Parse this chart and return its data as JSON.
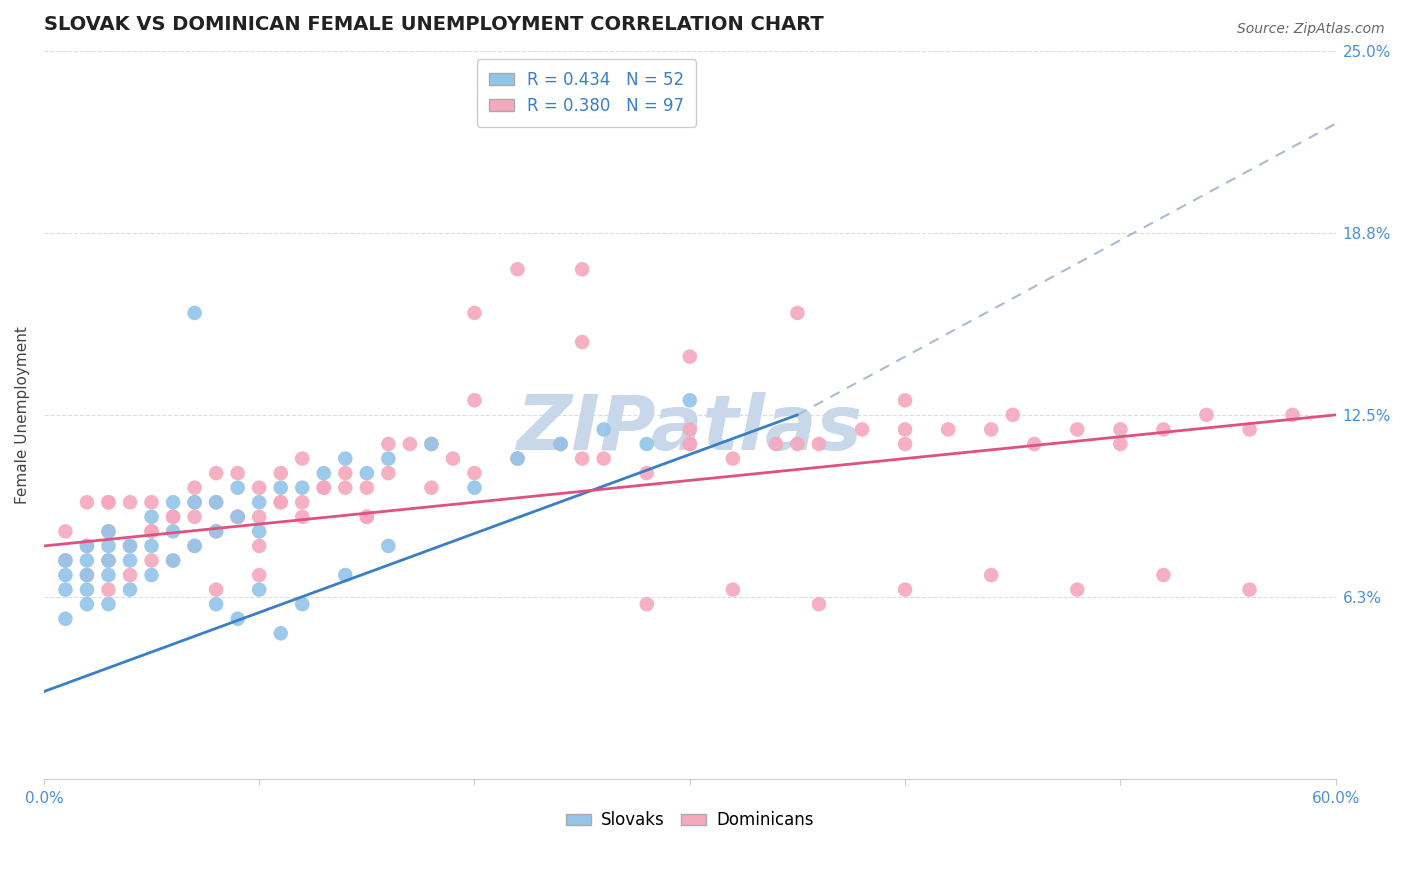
{
  "title": "SLOVAK VS DOMINICAN FEMALE UNEMPLOYMENT CORRELATION CHART",
  "source": "Source: ZipAtlas.com",
  "ylabel": "Female Unemployment",
  "xlim": [
    0.0,
    0.6
  ],
  "ylim": [
    0.0,
    0.25
  ],
  "yticks": [
    0.0,
    0.0625,
    0.125,
    0.1875,
    0.25
  ],
  "ytick_labels": [
    "",
    "6.3%",
    "12.5%",
    "18.8%",
    "25.0%"
  ],
  "xticks": [
    0.0,
    0.1,
    0.2,
    0.3,
    0.4,
    0.5,
    0.6
  ],
  "xtick_labels": [
    "0.0%",
    "",
    "",
    "",
    "",
    "",
    "60.0%"
  ],
  "slovak_R": 0.434,
  "slovak_N": 52,
  "dominican_R": 0.38,
  "dominican_N": 97,
  "slovak_color": "#92C5E8",
  "dominican_color": "#F5A8BE",
  "slovak_line_color": "#3A7EC6",
  "dominican_line_color": "#E05080",
  "dashed_color": "#AABBD0",
  "watermark_color": "#C8D8EA",
  "background_color": "#FFFFFF",
  "title_fontsize": 14,
  "label_fontsize": 11,
  "tick_fontsize": 11,
  "legend_fontsize": 12,
  "source_fontsize": 10,
  "slovak_trend": [
    0.0,
    0.35
  ],
  "slovak_trend_y": [
    0.03,
    0.125
  ],
  "dominican_trend": [
    0.0,
    0.6
  ],
  "dominican_trend_y": [
    0.08,
    0.125
  ],
  "dashed_trend": [
    0.35,
    0.6
  ],
  "dashed_trend_y": [
    0.125,
    0.225
  ],
  "slovak_scatter_x": [
    0.01,
    0.01,
    0.01,
    0.01,
    0.02,
    0.02,
    0.02,
    0.02,
    0.02,
    0.03,
    0.03,
    0.03,
    0.03,
    0.03,
    0.04,
    0.04,
    0.04,
    0.05,
    0.05,
    0.05,
    0.06,
    0.06,
    0.06,
    0.07,
    0.07,
    0.08,
    0.08,
    0.09,
    0.09,
    0.1,
    0.1,
    0.11,
    0.12,
    0.13,
    0.14,
    0.15,
    0.16,
    0.18,
    0.2,
    0.22,
    0.24,
    0.26,
    0.28,
    0.3,
    0.07,
    0.08,
    0.09,
    0.1,
    0.11,
    0.12,
    0.14,
    0.16
  ],
  "slovak_scatter_y": [
    0.055,
    0.065,
    0.07,
    0.075,
    0.06,
    0.065,
    0.07,
    0.075,
    0.08,
    0.06,
    0.07,
    0.075,
    0.08,
    0.085,
    0.065,
    0.075,
    0.08,
    0.07,
    0.08,
    0.09,
    0.075,
    0.085,
    0.095,
    0.08,
    0.095,
    0.085,
    0.095,
    0.09,
    0.1,
    0.085,
    0.095,
    0.1,
    0.1,
    0.105,
    0.11,
    0.105,
    0.11,
    0.115,
    0.1,
    0.11,
    0.115,
    0.12,
    0.115,
    0.13,
    0.16,
    0.06,
    0.055,
    0.065,
    0.05,
    0.06,
    0.07,
    0.08
  ],
  "dominican_scatter_x": [
    0.01,
    0.01,
    0.02,
    0.02,
    0.02,
    0.03,
    0.03,
    0.03,
    0.03,
    0.04,
    0.04,
    0.04,
    0.05,
    0.05,
    0.05,
    0.06,
    0.06,
    0.07,
    0.07,
    0.07,
    0.08,
    0.08,
    0.08,
    0.09,
    0.09,
    0.1,
    0.1,
    0.11,
    0.11,
    0.12,
    0.12,
    0.13,
    0.14,
    0.15,
    0.16,
    0.17,
    0.18,
    0.19,
    0.2,
    0.22,
    0.24,
    0.26,
    0.28,
    0.3,
    0.32,
    0.34,
    0.36,
    0.38,
    0.4,
    0.42,
    0.44,
    0.46,
    0.48,
    0.5,
    0.52,
    0.54,
    0.56,
    0.58,
    0.3,
    0.35,
    0.4,
    0.45,
    0.5,
    0.25,
    0.3,
    0.35,
    0.4,
    0.2,
    0.25,
    0.3,
    0.1,
    0.15,
    0.2,
    0.25,
    0.12,
    0.14,
    0.16,
    0.18,
    0.05,
    0.07,
    0.09,
    0.11,
    0.13,
    0.15,
    0.28,
    0.32,
    0.36,
    0.4,
    0.44,
    0.48,
    0.52,
    0.56,
    0.03,
    0.06,
    0.08,
    0.1,
    0.22
  ],
  "dominican_scatter_y": [
    0.075,
    0.085,
    0.07,
    0.08,
    0.095,
    0.065,
    0.075,
    0.085,
    0.095,
    0.07,
    0.08,
    0.095,
    0.075,
    0.085,
    0.095,
    0.075,
    0.09,
    0.08,
    0.09,
    0.1,
    0.085,
    0.095,
    0.105,
    0.09,
    0.105,
    0.09,
    0.1,
    0.095,
    0.105,
    0.095,
    0.11,
    0.1,
    0.105,
    0.1,
    0.105,
    0.115,
    0.1,
    0.11,
    0.105,
    0.11,
    0.115,
    0.11,
    0.105,
    0.115,
    0.11,
    0.115,
    0.115,
    0.12,
    0.115,
    0.12,
    0.12,
    0.115,
    0.12,
    0.115,
    0.12,
    0.125,
    0.12,
    0.125,
    0.12,
    0.115,
    0.12,
    0.125,
    0.12,
    0.11,
    0.115,
    0.16,
    0.13,
    0.16,
    0.175,
    0.145,
    0.08,
    0.09,
    0.13,
    0.15,
    0.09,
    0.1,
    0.115,
    0.115,
    0.085,
    0.095,
    0.09,
    0.095,
    0.1,
    0.09,
    0.06,
    0.065,
    0.06,
    0.065,
    0.07,
    0.065,
    0.07,
    0.065,
    0.095,
    0.09,
    0.065,
    0.07,
    0.175
  ]
}
